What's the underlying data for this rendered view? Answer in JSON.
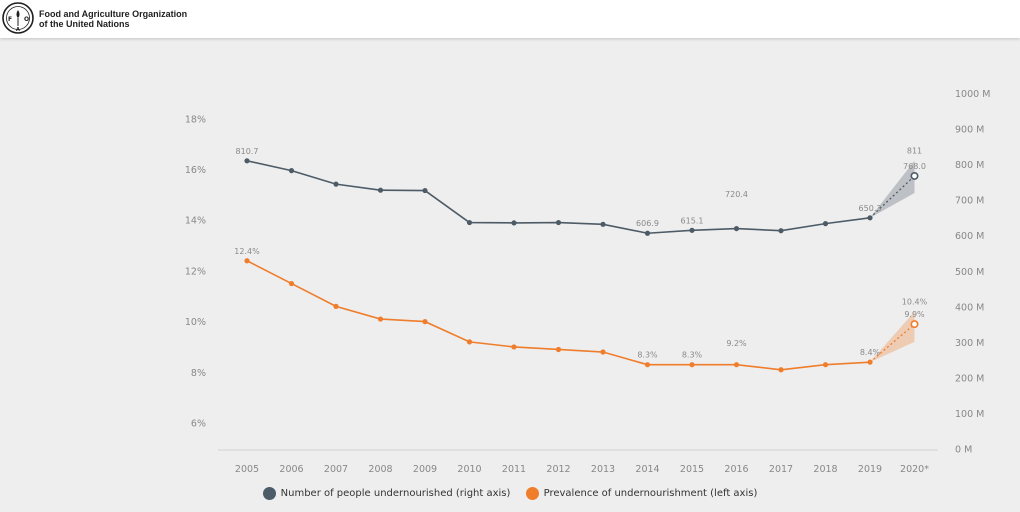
{
  "header": {
    "logo_text": "FAO",
    "org_line1": "Food and Agriculture Organization",
    "org_line2": "of the United Nations"
  },
  "colors": {
    "number_series": "#4d5b66",
    "prevalence_series": "#ef7d2b",
    "axis_text": "#888888",
    "label_text": "#8a8a8a"
  },
  "chart_data": {
    "type": "line",
    "title": "",
    "categories": [
      "2005",
      "2006",
      "2007",
      "2008",
      "2009",
      "2010",
      "2011",
      "2012",
      "2013",
      "2014",
      "2015",
      "2016",
      "2017",
      "2018",
      "2019",
      "2020*"
    ],
    "left_axis": {
      "ticks": [
        "6%",
        "8%",
        "10%",
        "12%",
        "14%",
        "16%",
        "18%"
      ],
      "tick_values": [
        6,
        8,
        10,
        12,
        14,
        16,
        18
      ],
      "ylim": [
        5,
        19
      ]
    },
    "right_axis": {
      "ticks": [
        "0 M",
        "100 M",
        "200 M",
        "300 M",
        "400 M",
        "500 M",
        "600 M",
        "700 M",
        "800 M",
        "900 M",
        "1000 M"
      ],
      "tick_values": [
        0,
        100,
        200,
        300,
        400,
        500,
        600,
        700,
        800,
        900,
        1000
      ],
      "ylim": [
        0,
        1000
      ]
    },
    "series": [
      {
        "name": "Number of people undernourished (right axis)",
        "axis": "right",
        "values": [
          810.7,
          783,
          745,
          728,
          727,
          637,
          636,
          637,
          632,
          606.9,
          615.1,
          620,
          614,
          634,
          650.3,
          768.0
        ],
        "projection_range": [
          720,
          811
        ],
        "projection_from_index": 14,
        "labels": [
          {
            "index": 0,
            "text": "810.7"
          },
          {
            "index": 9,
            "text": "606.9"
          },
          {
            "index": 10,
            "text": "615.1"
          },
          {
            "index": 14,
            "text": "650.3"
          },
          {
            "index": 15,
            "text": "768.0"
          }
        ],
        "range_labels": [
          {
            "index": 15,
            "which": "high",
            "text": "811"
          },
          {
            "index": 11,
            "which": "low",
            "text": "720.4"
          }
        ]
      },
      {
        "name": "Prevalence of undernourishment (left axis)",
        "axis": "left",
        "values": [
          12.4,
          11.5,
          10.6,
          10.1,
          10.0,
          9.2,
          9.0,
          8.9,
          8.8,
          8.3,
          8.3,
          8.3,
          8.1,
          8.3,
          8.4,
          9.9
        ],
        "projection_range": [
          9.2,
          10.4
        ],
        "projection_from_index": 14,
        "labels": [
          {
            "index": 0,
            "text": "12.4%"
          },
          {
            "index": 9,
            "text": "8.3%"
          },
          {
            "index": 10,
            "text": "8.3%"
          },
          {
            "index": 14,
            "text": "8.4%"
          },
          {
            "index": 15,
            "text": "9.9%"
          }
        ],
        "range_labels": [
          {
            "index": 15,
            "which": "high",
            "text": "10.4%"
          },
          {
            "index": 11,
            "which": "low",
            "text": "9.2%"
          }
        ]
      }
    ],
    "legend": [
      {
        "label": "Number of people undernourished (right axis)",
        "color": "#4d5b66"
      },
      {
        "label": "Prevalence of undernourishment (left axis)",
        "color": "#ef7d2b"
      }
    ]
  }
}
